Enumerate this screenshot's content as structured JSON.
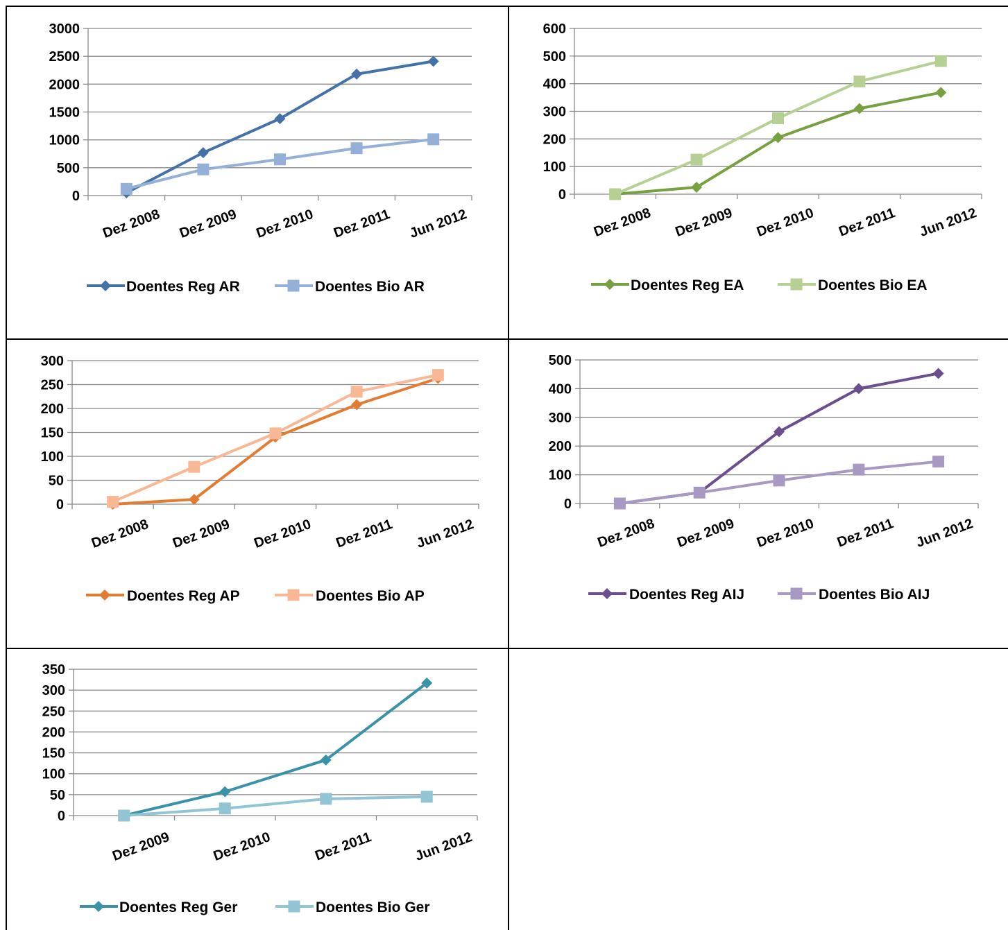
{
  "chart_data": [
    {
      "type": "line",
      "categories": [
        "Dez 2008",
        "Dez 2009",
        "Dez 2010",
        "Dez 2011",
        "Jun 2012"
      ],
      "ylim": [
        0,
        3000
      ],
      "yticks": [
        0,
        500,
        1000,
        1500,
        2000,
        2500,
        3000
      ],
      "grid": true,
      "legend": "bottom",
      "series": [
        {
          "name": "Doentes Reg AR",
          "values": [
            50,
            770,
            1380,
            2180,
            2410
          ],
          "color": "#4472a8",
          "marker": "diamond"
        },
        {
          "name": "Doentes Bio AR",
          "values": [
            120,
            470,
            650,
            850,
            1010
          ],
          "color": "#95b0d8",
          "marker": "square"
        }
      ]
    },
    {
      "type": "line",
      "categories": [
        "Dez 2008",
        "Dez 2009",
        "Dez 2010",
        "Dez 2011",
        "Jun 2012"
      ],
      "ylim": [
        0,
        600
      ],
      "yticks": [
        0,
        100,
        200,
        300,
        400,
        500,
        600
      ],
      "grid": true,
      "legend": "bottom",
      "series": [
        {
          "name": "Doentes Reg EA",
          "values": [
            0,
            25,
            205,
            310,
            368
          ],
          "color": "#77a040",
          "marker": "diamond"
        },
        {
          "name": "Doentes Bio EA",
          "values": [
            0,
            125,
            275,
            408,
            482
          ],
          "color": "#b6d094",
          "marker": "square"
        }
      ]
    },
    {
      "type": "line",
      "categories": [
        "Dez 2008",
        "Dez 2009",
        "Dez 2010",
        "Dez 2011",
        "Jun 2012"
      ],
      "ylim": [
        0,
        300
      ],
      "yticks": [
        0,
        50,
        100,
        150,
        200,
        250,
        300
      ],
      "grid": true,
      "legend": "bottom",
      "series": [
        {
          "name": "Doentes Reg AP",
          "values": [
            0,
            10,
            140,
            208,
            263
          ],
          "color": "#e07d32",
          "marker": "diamond"
        },
        {
          "name": "Doentes Bio AP",
          "values": [
            5,
            78,
            148,
            235,
            270
          ],
          "color": "#f8b896",
          "marker": "square"
        }
      ]
    },
    {
      "type": "line",
      "categories": [
        "Dez 2008",
        "Dez 2009",
        "Dez 2010",
        "Dez 2011",
        "Jun 2012"
      ],
      "ylim": [
        0,
        500
      ],
      "yticks": [
        0,
        100,
        200,
        300,
        400,
        500
      ],
      "grid": true,
      "legend": "bottom",
      "series": [
        {
          "name": "Doentes Reg AIJ",
          "values": [
            0,
            38,
            250,
            400,
            453
          ],
          "color": "#6b4e8e",
          "marker": "diamond"
        },
        {
          "name": "Doentes Bio AIJ",
          "values": [
            0,
            38,
            80,
            118,
            146
          ],
          "color": "#a898c4",
          "marker": "square"
        }
      ]
    },
    {
      "type": "line",
      "categories": [
        "Dez 2009",
        "Dez 2010",
        "Dez 2011",
        "Jun 2012"
      ],
      "ylim": [
        0,
        350
      ],
      "yticks": [
        0,
        50,
        100,
        150,
        200,
        250,
        300,
        350
      ],
      "grid": true,
      "legend": "bottom",
      "series": [
        {
          "name": "Doentes Reg Ger",
          "values": [
            0,
            57,
            133,
            317
          ],
          "color": "#3a92a8",
          "marker": "diamond"
        },
        {
          "name": "Doentes Bio Ger",
          "values": [
            0,
            17,
            40,
            45
          ],
          "color": "#92c4d4",
          "marker": "square"
        }
      ]
    }
  ]
}
